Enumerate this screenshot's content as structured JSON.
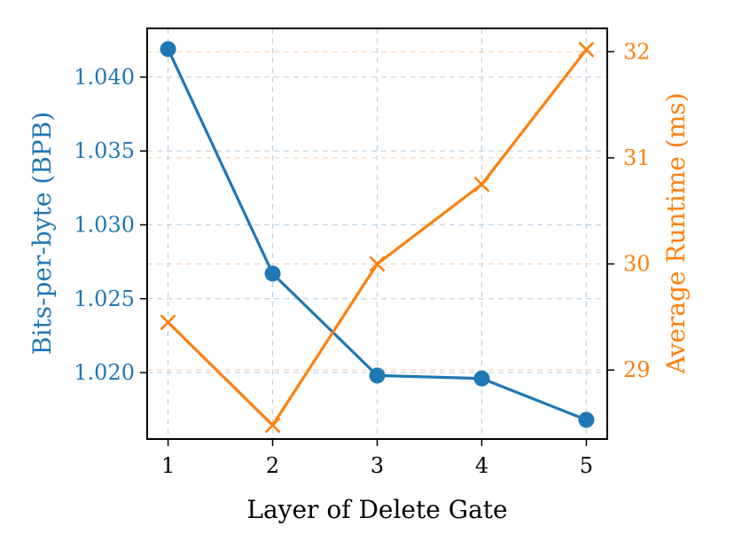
{
  "chart_data": {
    "type": "line",
    "xlabel": "Layer of Delete Gate",
    "x": [
      1,
      2,
      3,
      4,
      5
    ],
    "x_ticks": [
      "1",
      "2",
      "3",
      "4",
      "5"
    ],
    "xlim": [
      0.8,
      5.2
    ],
    "left_axis": {
      "label": "Bits-per-byte (BPB)",
      "color": "#1f77b4",
      "ylim": [
        1.0155,
        1.0433
      ],
      "ticks": [
        1.02,
        1.025,
        1.03,
        1.035,
        1.04
      ],
      "tick_labels": [
        "1.020",
        "1.025",
        "1.030",
        "1.035",
        "1.040"
      ]
    },
    "right_axis": {
      "label": "Average Runtime (ms)",
      "color": "#ff7f0e",
      "ylim": [
        28.35,
        32.22
      ],
      "ticks": [
        29,
        30,
        31,
        32
      ],
      "tick_labels": [
        "29",
        "30",
        "31",
        "32"
      ]
    },
    "series": [
      {
        "axis": "left",
        "marker": "circle",
        "color": "#1f77b4",
        "values": [
          1.0419,
          1.0267,
          1.0198,
          1.0196,
          1.0168
        ]
      },
      {
        "axis": "right",
        "marker": "x",
        "color": "#ff7f0e",
        "values": [
          29.45,
          28.48,
          30.0,
          30.75,
          32.02
        ]
      }
    ],
    "grid": true
  }
}
